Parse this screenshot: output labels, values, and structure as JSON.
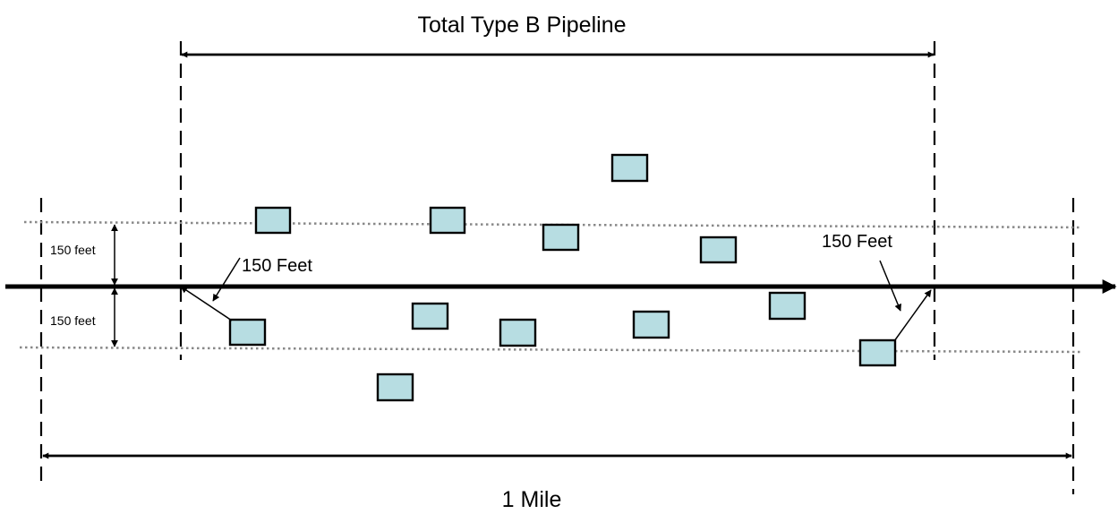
{
  "labels": {
    "total_type_b": "Total Type B Pipeline",
    "one_mile": "1 Mile",
    "feet_left": "150 Feet",
    "feet_right": "150 Feet",
    "feet_upper": "150 feet",
    "feet_lower": "150 feet"
  },
  "colors": {
    "building_fill": "#b7dde2",
    "corridor_boundary": "#888888",
    "lines": "#000000"
  },
  "icons": {
    "building": "rectangle",
    "arrowhead": "filled-triangle"
  },
  "building_count": 13
}
